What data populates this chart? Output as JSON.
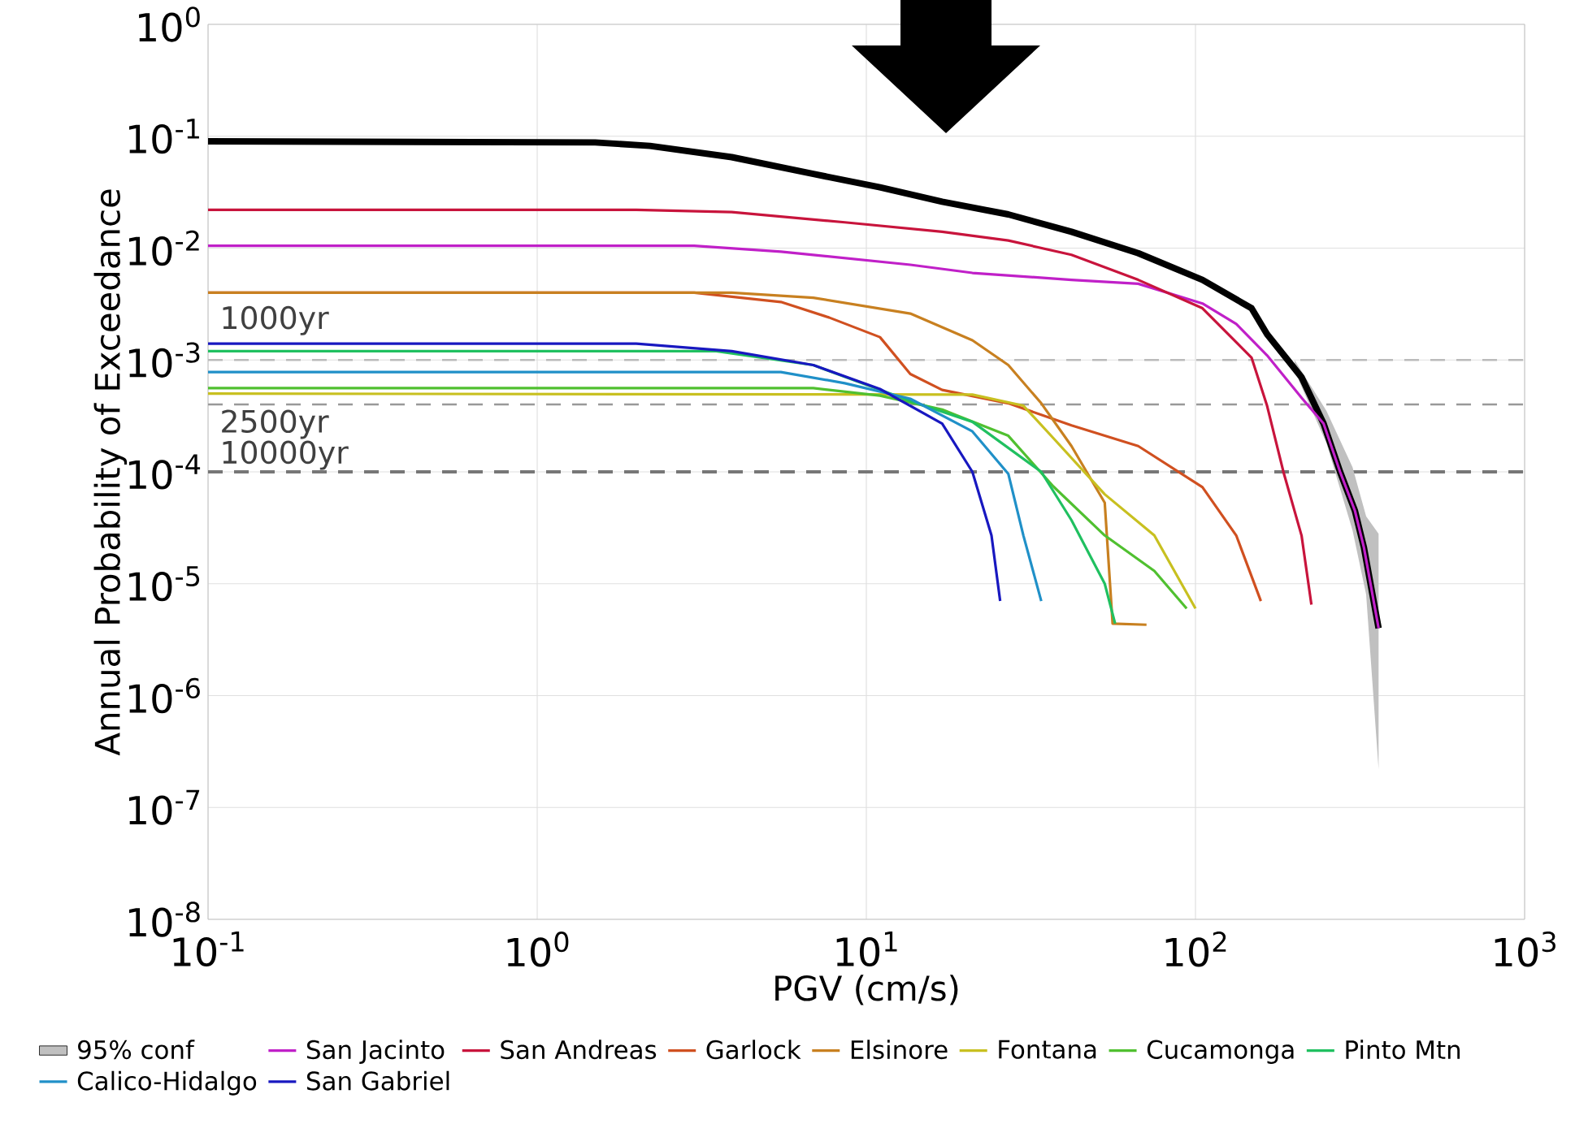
{
  "chart_data": {
    "type": "line",
    "xlabel": "PGV (cm/s)",
    "ylabel": "Annual Probability of Exceedance",
    "log": "xy",
    "grid": true,
    "legend": "bottom",
    "line_style": "solid",
    "xlim": [
      0.1,
      1000
    ],
    "ylim": [
      1e-08,
      1
    ],
    "xticks": [
      {
        "value": 0.1,
        "label": "10$^{-1}$"
      },
      {
        "value": 1,
        "label": "10$^{0}$"
      },
      {
        "value": 10,
        "label": "10$^{1}$"
      },
      {
        "value": 100,
        "label": "10$^{2}$"
      },
      {
        "value": 1000,
        "label": "10$^{3}$"
      }
    ],
    "yticks": [
      {
        "value": 1e-08,
        "label": "10$^{-8}$"
      },
      {
        "value": 1e-07,
        "label": "10$^{-7}$"
      },
      {
        "value": 1e-06,
        "label": "10$^{-6}$"
      },
      {
        "value": 1e-05,
        "label": "10$^{-5}$"
      },
      {
        "value": 0.0001,
        "label": "10$^{-4}$"
      },
      {
        "value": 0.001,
        "label": "10$^{-3}$"
      },
      {
        "value": 0.01,
        "label": "10$^{-2}$"
      },
      {
        "value": 0.1,
        "label": "10$^{-1}$"
      },
      {
        "value": 1,
        "label": "10$^{0}$"
      }
    ],
    "ref_lines": [
      {
        "axis": "y",
        "value": 0.001,
        "label": "1000yr",
        "color": "#bbbbbb",
        "line_style": "dashed"
      },
      {
        "axis": "y",
        "value": 0.0004,
        "label": "2500yr",
        "color": "#999999",
        "line_style": "dashed"
      },
      {
        "axis": "y",
        "value": 0.0001,
        "label": "10000yr",
        "color": "#777777",
        "line_style": "dashed"
      }
    ],
    "series": [
      {
        "name": "95% conf",
        "type": "area",
        "color": "#c0c0c0",
        "x": [
          200,
          250,
          300,
          330,
          360
        ],
        "values": [
          null,
          null,
          null,
          null,
          null
        ],
        "lower": [
          0.0008,
          0.00018,
          3e-05,
          8e-06,
          2.2e-07
        ],
        "upper": [
          0.001,
          0.00035,
          0.00011,
          4e-05,
          2.8e-05
        ]
      },
      {
        "type": "line",
        "color": "#000000",
        "x": [
          0.1,
          1.5,
          2.2,
          3.9,
          6.9,
          11,
          17,
          27,
          42,
          67,
          105,
          148,
          165,
          210,
          245,
          275,
          305,
          325,
          360
        ],
        "values": [
          0.09,
          0.088,
          0.082,
          0.065,
          0.046,
          0.035,
          0.026,
          0.02,
          0.014,
          0.009,
          0.0052,
          0.0029,
          0.0017,
          0.0007,
          0.00027,
          0.0001,
          4.5e-05,
          2.1e-05,
          4e-06
        ]
      },
      {
        "name": "San Jacinto",
        "color": "#c020c8",
        "x": [
          0.1,
          3,
          5.5,
          13.6,
          21,
          42,
          67,
          105,
          133,
          165,
          210,
          245,
          275,
          305,
          325,
          360
        ],
        "values": [
          0.0105,
          0.0105,
          0.0093,
          0.0071,
          0.006,
          0.0052,
          0.0048,
          0.0032,
          0.0021,
          0.0011,
          0.00046,
          0.00027,
          0.0001,
          4.5e-05,
          2.1e-05,
          4e-06
        ]
      },
      {
        "name": "San Andreas",
        "color": "#c8143c",
        "x": [
          0.1,
          2,
          3.9,
          8.6,
          17,
          27,
          42,
          67,
          105,
          148,
          165,
          185,
          210,
          225
        ],
        "values": [
          0.022,
          0.022,
          0.021,
          0.017,
          0.014,
          0.0117,
          0.0087,
          0.0052,
          0.0029,
          0.00105,
          0.00039,
          0.0001,
          2.7e-05,
          6.5e-06
        ]
      },
      {
        "name": "Garlock",
        "color": "#d05020",
        "x": [
          0.1,
          3,
          5.5,
          7.7,
          11,
          13.6,
          17,
          27,
          42,
          67,
          105,
          133,
          158
        ],
        "values": [
          0.004,
          0.004,
          0.0033,
          0.0024,
          0.0016,
          0.00075,
          0.00054,
          0.00041,
          0.00026,
          0.00017,
          7.3e-05,
          2.7e-05,
          7e-06
        ]
      },
      {
        "name": "Elsinore",
        "color": "#c88020",
        "x": [
          0.1,
          3.9,
          6.9,
          13.6,
          21,
          27,
          34,
          42,
          53,
          56,
          71
        ],
        "values": [
          0.004,
          0.004,
          0.0036,
          0.0026,
          0.0015,
          0.0009,
          0.00041,
          0.00017,
          5.3e-05,
          4.4e-06,
          4.3e-06
        ]
      },
      {
        "name": "Fontana",
        "color": "#c8c020",
        "x": [
          0.1,
          21,
          30,
          37,
          53,
          75,
          100
        ],
        "values": [
          0.0005,
          0.00049,
          0.00039,
          0.0002,
          6.3e-05,
          2.7e-05,
          6e-06
        ]
      },
      {
        "name": "Cucamonga",
        "color": "#50c030",
        "x": [
          0.1,
          6.9,
          11,
          17,
          27,
          37,
          53,
          75,
          94
        ],
        "values": [
          0.00056,
          0.00056,
          0.00048,
          0.00036,
          0.00021,
          7.4e-05,
          2.7e-05,
          1.3e-05,
          6e-06
        ]
      },
      {
        "name": "Pinto Mtn",
        "color": "#20c060",
        "x": [
          0.1,
          3.5,
          6.9,
          9.7,
          13.6,
          21,
          34,
          42,
          53,
          57
        ],
        "values": [
          0.0012,
          0.0012,
          0.0009,
          0.00062,
          0.00043,
          0.00028,
          0.0001,
          3.7e-05,
          1e-05,
          4.4e-06
        ]
      },
      {
        "name": "Calico-Hidalgo",
        "color": "#2090c8",
        "x": [
          0.1,
          5.5,
          8.6,
          13.6,
          21,
          27,
          30,
          34
        ],
        "values": [
          0.00078,
          0.00078,
          0.00062,
          0.00045,
          0.00023,
          9.6e-05,
          2.7e-05,
          7e-06
        ]
      },
      {
        "name": "San Gabriel",
        "color": "#1818c0",
        "x": [
          0.1,
          2,
          3.9,
          6.9,
          11,
          17,
          21,
          24,
          25.5
        ],
        "values": [
          0.0014,
          0.0014,
          0.0012,
          0.0009,
          0.00055,
          0.00027,
          0.0001,
          2.7e-05,
          7e-06
        ]
      }
    ]
  }
}
